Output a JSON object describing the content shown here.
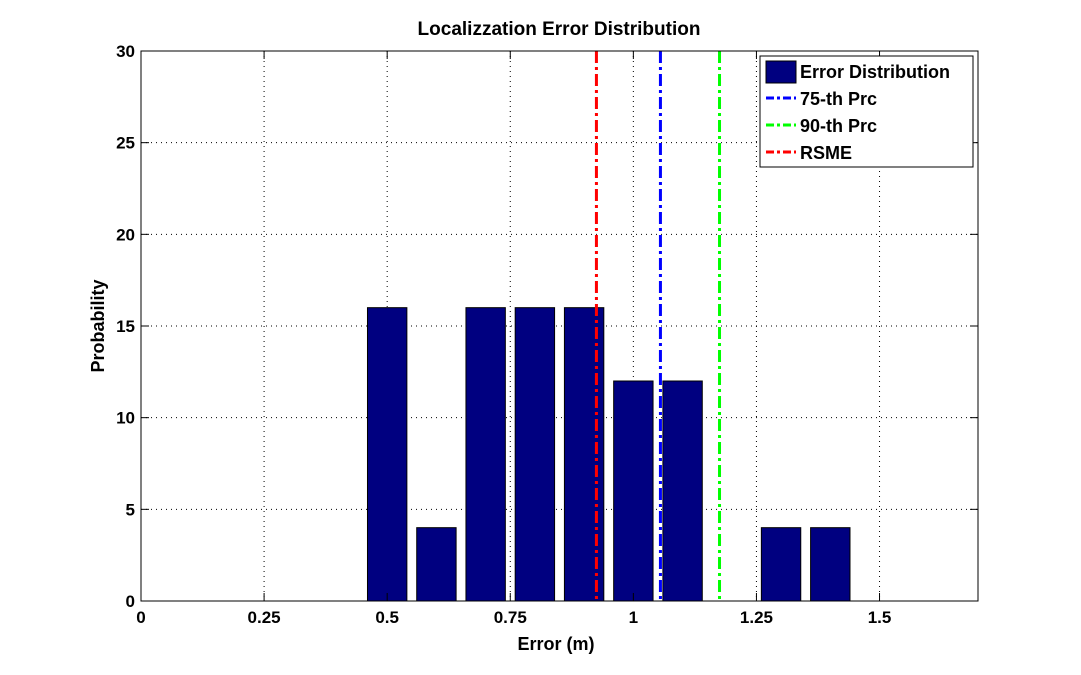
{
  "chart_data": {
    "type": "bar",
    "title": "Localizzation Error Distribution",
    "xlabel": "Error (m)",
    "ylabel": "Probability",
    "xlim": [
      0,
      1.7
    ],
    "ylim": [
      0,
      30
    ],
    "grid": true,
    "x_ticks": [
      0,
      0.25,
      0.5,
      0.75,
      1,
      1.25,
      1.5
    ],
    "x_tick_labels": [
      "0",
      "0.25",
      "0.5",
      "0.75",
      "1",
      "1.25",
      "1.5"
    ],
    "y_ticks": [
      0,
      5,
      10,
      15,
      20,
      25,
      30
    ],
    "y_tick_labels": [
      "0",
      "5",
      "10",
      "15",
      "20",
      "25",
      "30"
    ],
    "bar_width": 0.08,
    "series": [
      {
        "name": "Error Distribution",
        "color": "#000080",
        "x": [
          0.5,
          0.6,
          0.7,
          0.8,
          0.9,
          1.0,
          1.1,
          1.3,
          1.4
        ],
        "values": [
          16,
          4,
          16,
          16,
          16,
          12,
          12,
          4,
          4
        ]
      }
    ],
    "lines": [
      {
        "name": "75-th Prc",
        "x": 1.055,
        "color": "#0000ff"
      },
      {
        "name": "90-th Prc",
        "x": 1.175,
        "color": "#00ff00"
      },
      {
        "name": "RSME",
        "x": 0.925,
        "color": "#ff0000"
      }
    ],
    "legend_position": "top-right"
  }
}
